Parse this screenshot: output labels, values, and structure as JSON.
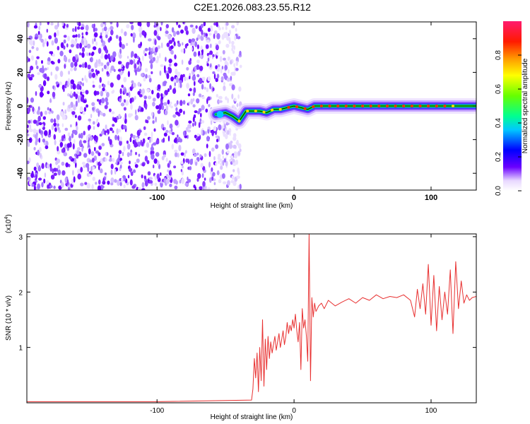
{
  "title": "C2E1.2026.083.23.55.R12",
  "chart_data": [
    {
      "type": "heatmap",
      "name": "spectrogram",
      "xlabel": "Height of straight line (km)",
      "ylabel": "Frequency (Hz)",
      "xlim": [
        -195,
        133
      ],
      "ylim": [
        -50,
        50
      ],
      "xticks": [
        -100,
        0,
        100
      ],
      "yticks": [
        -40,
        -20,
        0,
        20,
        40
      ],
      "noise_region_x": [
        -195,
        -45
      ],
      "signal_track": {
        "x": [
          -57,
          -50,
          -45,
          -40,
          -35,
          -30,
          -25,
          -20,
          -15,
          -10,
          -5,
          0,
          5,
          10,
          15,
          20,
          30,
          50,
          70,
          90,
          110,
          133
        ],
        "y": [
          -5,
          -4,
          -6,
          -9,
          -3,
          -3,
          -3,
          -4,
          -2,
          -2,
          -1,
          0,
          -1,
          -2,
          0,
          0,
          0,
          0,
          0,
          0,
          0,
          0
        ]
      },
      "colorbar": {
        "label": "Normalized spectral amplitude",
        "range": [
          0,
          1
        ],
        "ticks": [
          "0.0",
          "0.2",
          "0.4",
          "0.6",
          "0.8"
        ]
      }
    },
    {
      "type": "line",
      "name": "snr",
      "xlabel": "Height of straight line (km)",
      "ylabel": "SNR (10 * v/v)",
      "scale_label": "(x10",
      "scale_exp": "4",
      "scale_close": ")",
      "xlim": [
        -195,
        133
      ],
      "ylim": [
        0,
        3.05
      ],
      "xticks": [
        -100,
        0,
        100
      ],
      "yticks": [
        1,
        2,
        3
      ],
      "color": "#e83030",
      "series": [
        {
          "name": "SNR",
          "x": [
            -195,
            -100,
            -31,
            -30,
            -29,
            -28,
            -27,
            -26,
            -25,
            -24,
            -23,
            -22,
            -21,
            -20,
            -19,
            -18,
            -17,
            -16,
            -15,
            -14,
            -13,
            -12,
            -11,
            -10,
            -9,
            -8,
            -7,
            -6,
            -5,
            -4,
            -3,
            -2,
            -1,
            0,
            1,
            2,
            3,
            4,
            5,
            6,
            7,
            8,
            9,
            10,
            11,
            12,
            13,
            14,
            15,
            16,
            17,
            18,
            20,
            22,
            25,
            30,
            35,
            40,
            45,
            50,
            55,
            60,
            65,
            70,
            75,
            80,
            85,
            88,
            90,
            92,
            94,
            96,
            98,
            100,
            102,
            104,
            106,
            108,
            110,
            112,
            114,
            116,
            118,
            120,
            122,
            124,
            126,
            128,
            130,
            133
          ],
          "y": [
            0.02,
            0.02,
            0.05,
            0.25,
            0.8,
            0.45,
            0.9,
            0.2,
            1.0,
            0.4,
            1.5,
            0.3,
            1.15,
            0.6,
            1.2,
            0.8,
            1.1,
            0.9,
            1.05,
            1.2,
            0.95,
            1.1,
            1.25,
            1.0,
            1.15,
            1.3,
            1.05,
            1.2,
            1.45,
            1.25,
            1.4,
            1.3,
            1.5,
            1.35,
            1.6,
            1.3,
            1.1,
            1.45,
            0.6,
            1.7,
            1.35,
            1.5,
            1.2,
            0.75,
            3.05,
            0.4,
            1.9,
            1.55,
            1.8,
            1.65,
            1.7,
            1.75,
            1.8,
            1.7,
            1.85,
            1.75,
            1.82,
            1.88,
            1.8,
            1.9,
            1.85,
            1.95,
            1.88,
            1.92,
            1.9,
            1.95,
            1.85,
            1.55,
            2.05,
            1.7,
            2.15,
            1.6,
            2.5,
            1.4,
            2.3,
            1.3,
            2.1,
            1.5,
            2.0,
            1.6,
            2.4,
            1.25,
            2.55,
            1.7,
            2.2,
            1.8,
            1.95,
            1.85,
            1.9,
            1.92
          ]
        }
      ]
    }
  ]
}
